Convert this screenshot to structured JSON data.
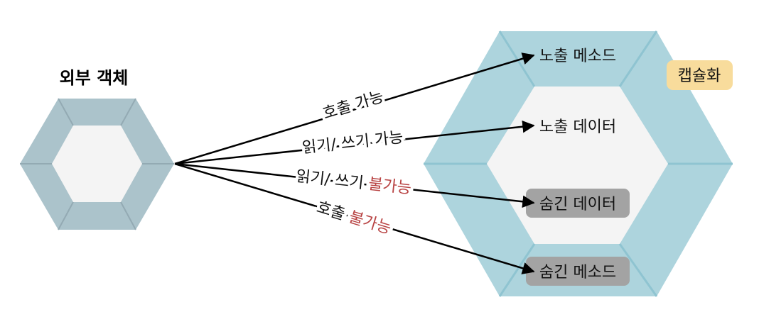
{
  "external_object": {
    "title": "외부 객체"
  },
  "encapsulation": {
    "badge": "캡슐화",
    "badge_color": "#f8dc9c",
    "outer_color": "#add4dd",
    "inner_color": "#f4f4f4",
    "public_method": "노출 메소드",
    "public_data": "노출 데이터",
    "hidden_data": "숨긴 데이터",
    "hidden_method": "숨긴 메소드",
    "hidden_box_color": "#a3a3a3"
  },
  "external_hex_color": "#abc3cb",
  "arrows": {
    "call_ok": "호출 가능",
    "rw_ok": "읽기/ 쓰기 가능",
    "rw_no_prefix": "읽기/ 쓰기 ",
    "rw_no_suffix": "불가능",
    "call_no_prefix": "호출 ",
    "call_no_suffix": "불가능",
    "impossible_color": "#b84343"
  }
}
